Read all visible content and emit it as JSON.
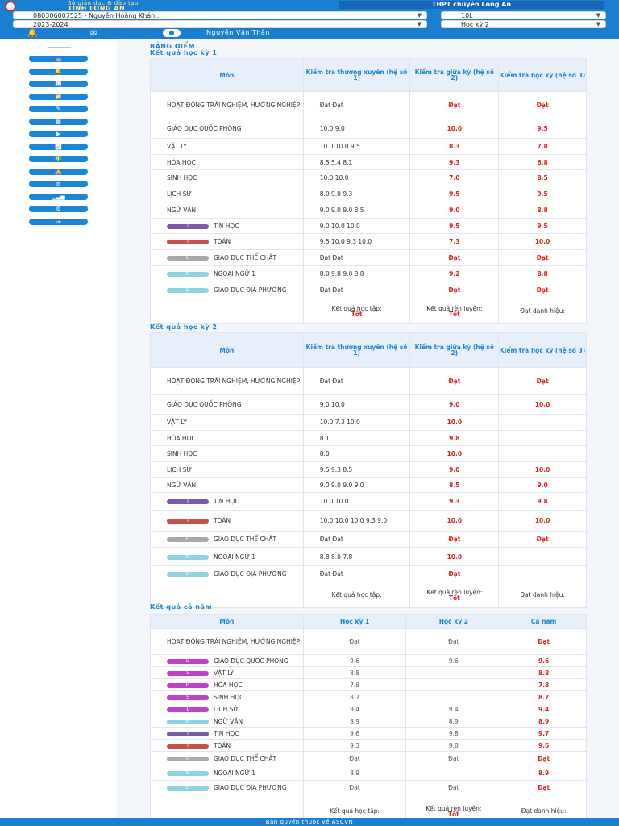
{
  "header": {
    "dept_small": "Sở giáo dục & đào tạo",
    "dept_big": "TỈNH LONG AN",
    "school": "THPT chuyên Long An",
    "student_select": "080306007525 - Nguyễn Hoàng Khán...",
    "class_select": "10L",
    "year_select": "2023-2024",
    "term_select": "Học kỳ 2",
    "user_name": "Nguyễn Văn Thân",
    "colors": {
      "primary": "#1b7fd1",
      "accent_red": "#e02020"
    }
  },
  "sidebar": {
    "items": [
      {
        "icon": "bus-icon"
      },
      {
        "icon": "bell-icon"
      },
      {
        "icon": "book-icon"
      },
      {
        "icon": "folder-icon"
      },
      {
        "icon": "pen-icon"
      },
      {
        "icon": "calendar-icon"
      },
      {
        "icon": "video-icon"
      },
      {
        "icon": "chart-line-icon"
      },
      {
        "icon": "money-icon"
      },
      {
        "icon": "school-icon"
      },
      {
        "icon": "list-icon"
      },
      {
        "icon": "bar-chart-icon"
      },
      {
        "icon": "settings-icon"
      },
      {
        "icon": "logout-icon"
      }
    ]
  },
  "page": {
    "title": "BẢNG ĐIỂM"
  },
  "term1": {
    "title": "Kết quả học kỳ 1",
    "headers": [
      "Môn",
      "Kiểm tra thường xuyên (hệ số 1)",
      "Kiểm tra giữa kỳ (hệ số 2)",
      "Kiểm tra học kỳ (hệ số 3)"
    ],
    "rows": [
      {
        "subject": "HOẠT ĐỘNG TRẢI NGHIỆM, HƯỚNG NGHIỆP",
        "badge": "",
        "tx": "Đạt Đạt",
        "gk": "Đạt",
        "hk": "Đạt"
      },
      {
        "subject": "GIÁO DỤC QUỐC PHÒNG",
        "badge": "",
        "tx": "10.0 9.0",
        "gk": "10.0",
        "hk": "9.5"
      },
      {
        "subject": "VẬT LÝ",
        "badge": "",
        "tx": "10.0 10.0 9.5",
        "gk": "8.3",
        "hk": "7.8"
      },
      {
        "subject": "HÓA HỌC",
        "badge": "",
        "tx": "8.5 5.4 8.1",
        "gk": "9.3",
        "hk": "6.8"
      },
      {
        "subject": "SINH HỌC",
        "badge": "",
        "tx": "10.0 10.0",
        "gk": "7.0",
        "hk": "8.5"
      },
      {
        "subject": "LỊCH SỬ",
        "badge": "",
        "tx": "8.0 9.0 9.3",
        "gk": "9.5",
        "hk": "9.5"
      },
      {
        "subject": "NGỮ VĂN",
        "badge": "",
        "tx": "9.0 9.0 9.0 8.5",
        "gk": "9.0",
        "hk": "8.8"
      },
      {
        "subject": "TIN HỌC",
        "badge": "T",
        "tx": "9.0 10.0 10.0",
        "gk": "9.5",
        "hk": "9.5"
      },
      {
        "subject": "TOÁN",
        "badge": "T",
        "tx": "9.5 10.0 9.3 10.0",
        "gk": "7.3",
        "hk": "10.0"
      },
      {
        "subject": "GIÁO DỤC THỂ CHẤT",
        "badge": "G",
        "tx": "Đạt Đạt",
        "gk": "Đạt",
        "hk": "Đạt"
      },
      {
        "subject": "NGOẠI NGỮ 1",
        "badge": "N",
        "tx": "8.0 9.8 9.0 8.8",
        "gk": "9.2",
        "hk": "8.8"
      },
      {
        "subject": "GIÁO DỤC ĐỊA PHƯƠNG",
        "badge": "G",
        "tx": "Đạt Đạt",
        "gk": "Đạt",
        "hk": "Đạt"
      }
    ],
    "summary": {
      "study_label": "Kết quả học tập:",
      "study_value": "Tốt",
      "train_label": "Kết quả rèn luyện:",
      "train_value": "Tốt",
      "title_label": "Đạt danh hiệu:"
    }
  },
  "term2": {
    "title": "Kết quả học kỳ 2",
    "headers": [
      "Môn",
      "Kiểm tra thường xuyên (hệ số 1)",
      "Kiểm tra giữa kỳ (hệ số 2)",
      "Kiểm tra học kỳ (hệ số 3)"
    ],
    "rows": [
      {
        "subject": "HOẠT ĐỘNG TRẢI NGHIỆM, HƯỚNG NGHIỆP",
        "badge": "",
        "tx": "Đạt Đạt",
        "gk": "Đạt",
        "hk": "Đạt"
      },
      {
        "subject": "GIÁO DỤC QUỐC PHÒNG",
        "badge": "",
        "tx": "9.0 10.0",
        "gk": "9.0",
        "hk": "10.0"
      },
      {
        "subject": "VẬT LÝ",
        "badge": "",
        "tx": "10.0 7.3 10.0",
        "gk": "10.0",
        "hk": ""
      },
      {
        "subject": "HÓA HỌC",
        "badge": "",
        "tx": "8.1",
        "gk": "9.8",
        "hk": ""
      },
      {
        "subject": "SINH HỌC",
        "badge": "",
        "tx": "8.0",
        "gk": "10.0",
        "hk": ""
      },
      {
        "subject": "LỊCH SỬ",
        "badge": "",
        "tx": "9.5 9.3 8.5",
        "gk": "9.0",
        "hk": "10.0"
      },
      {
        "subject": "NGỮ VĂN",
        "badge": "",
        "tx": "9.0 9.0 9.0 9.0",
        "gk": "8.5",
        "hk": "9.0"
      },
      {
        "subject": "TIN HỌC",
        "badge": "T",
        "tx": "10.0 10.0",
        "gk": "9.3",
        "hk": "9.8"
      },
      {
        "subject": "TOÁN",
        "badge": "T",
        "tx": "10.0 10.0 10.0 9.3 9.0",
        "gk": "10.0",
        "hk": "10.0"
      },
      {
        "subject": "GIÁO DỤC THỂ CHẤT",
        "badge": "G",
        "tx": "Đạt Đạt",
        "gk": "Đạt",
        "hk": "Đạt"
      },
      {
        "subject": "NGOẠI NGỮ 1",
        "badge": "N",
        "tx": "8.8 8.0 7.8",
        "gk": "10.0",
        "hk": ""
      },
      {
        "subject": "GIÁO DỤC ĐỊA PHƯƠNG",
        "badge": "G",
        "tx": "Đạt Đạt",
        "gk": "Đạt",
        "hk": ""
      }
    ],
    "summary": {
      "study_label": "Kết quả học tập:",
      "study_value": "",
      "train_label": "Kết quả rèn luyện:",
      "train_value": "Tốt",
      "title_label": "Đạt danh hiệu:"
    }
  },
  "year": {
    "title": "Kết quả cả năm",
    "headers": [
      "Môn",
      "Học kỳ 1",
      "Học kỳ 2",
      "Cả năm"
    ],
    "rows": [
      {
        "subject": "HOẠT ĐỘNG TRẢI NGHIỆM, HƯỚNG NGHIỆP",
        "badge": "",
        "hk1": "Đạt",
        "hk2": "Đạt",
        "cn": "Đạt"
      },
      {
        "subject": "GIÁO DỤC QUỐC PHÒNG",
        "badge": "G",
        "hk1": "9.6",
        "hk2": "9.6",
        "cn": "9.6"
      },
      {
        "subject": "VẬT LÝ",
        "badge": "V",
        "hk1": "8.8",
        "hk2": "",
        "cn": "8.8"
      },
      {
        "subject": "HÓA HỌC",
        "badge": "H",
        "hk1": "7.8",
        "hk2": "",
        "cn": "7.8"
      },
      {
        "subject": "SINH HỌC",
        "badge": "S",
        "hk1": "8.7",
        "hk2": "",
        "cn": "8.7"
      },
      {
        "subject": "LỊCH SỬ",
        "badge": "L",
        "hk1": "9.4",
        "hk2": "9.4",
        "cn": "9.4"
      },
      {
        "subject": "NGỮ VĂN",
        "badge": "N",
        "hk1": "8.9",
        "hk2": "8.9",
        "cn": "8.9"
      },
      {
        "subject": "TIN HỌC",
        "badge": "T",
        "hk1": "9.6",
        "hk2": "9.8",
        "cn": "9.7"
      },
      {
        "subject": "TOÁN",
        "badge": "T",
        "hk1": "9.3",
        "hk2": "9.8",
        "cn": "9.6"
      },
      {
        "subject": "GIÁO DỤC THỂ CHẤT",
        "badge": "G",
        "hk1": "Đạt",
        "hk2": "Đạt",
        "cn": "Đạt"
      },
      {
        "subject": "NGOẠI NGỮ 1",
        "badge": "N",
        "hk1": "8.9",
        "hk2": "",
        "cn": "8.9"
      },
      {
        "subject": "GIÁO DỤC ĐỊA PHƯƠNG",
        "badge": "G",
        "hk1": "Đạt",
        "hk2": "Đạt",
        "cn": "Đạt"
      }
    ],
    "summary": {
      "study_label": "Kết quả học tập:",
      "study_value": "",
      "train_label": "Kết quả rèn luyện:",
      "train_value": "Tốt",
      "title_label": "Đạt danh hiệu:"
    }
  },
  "footer": {
    "text": "Bản quyền thuộc về ASCVN"
  }
}
